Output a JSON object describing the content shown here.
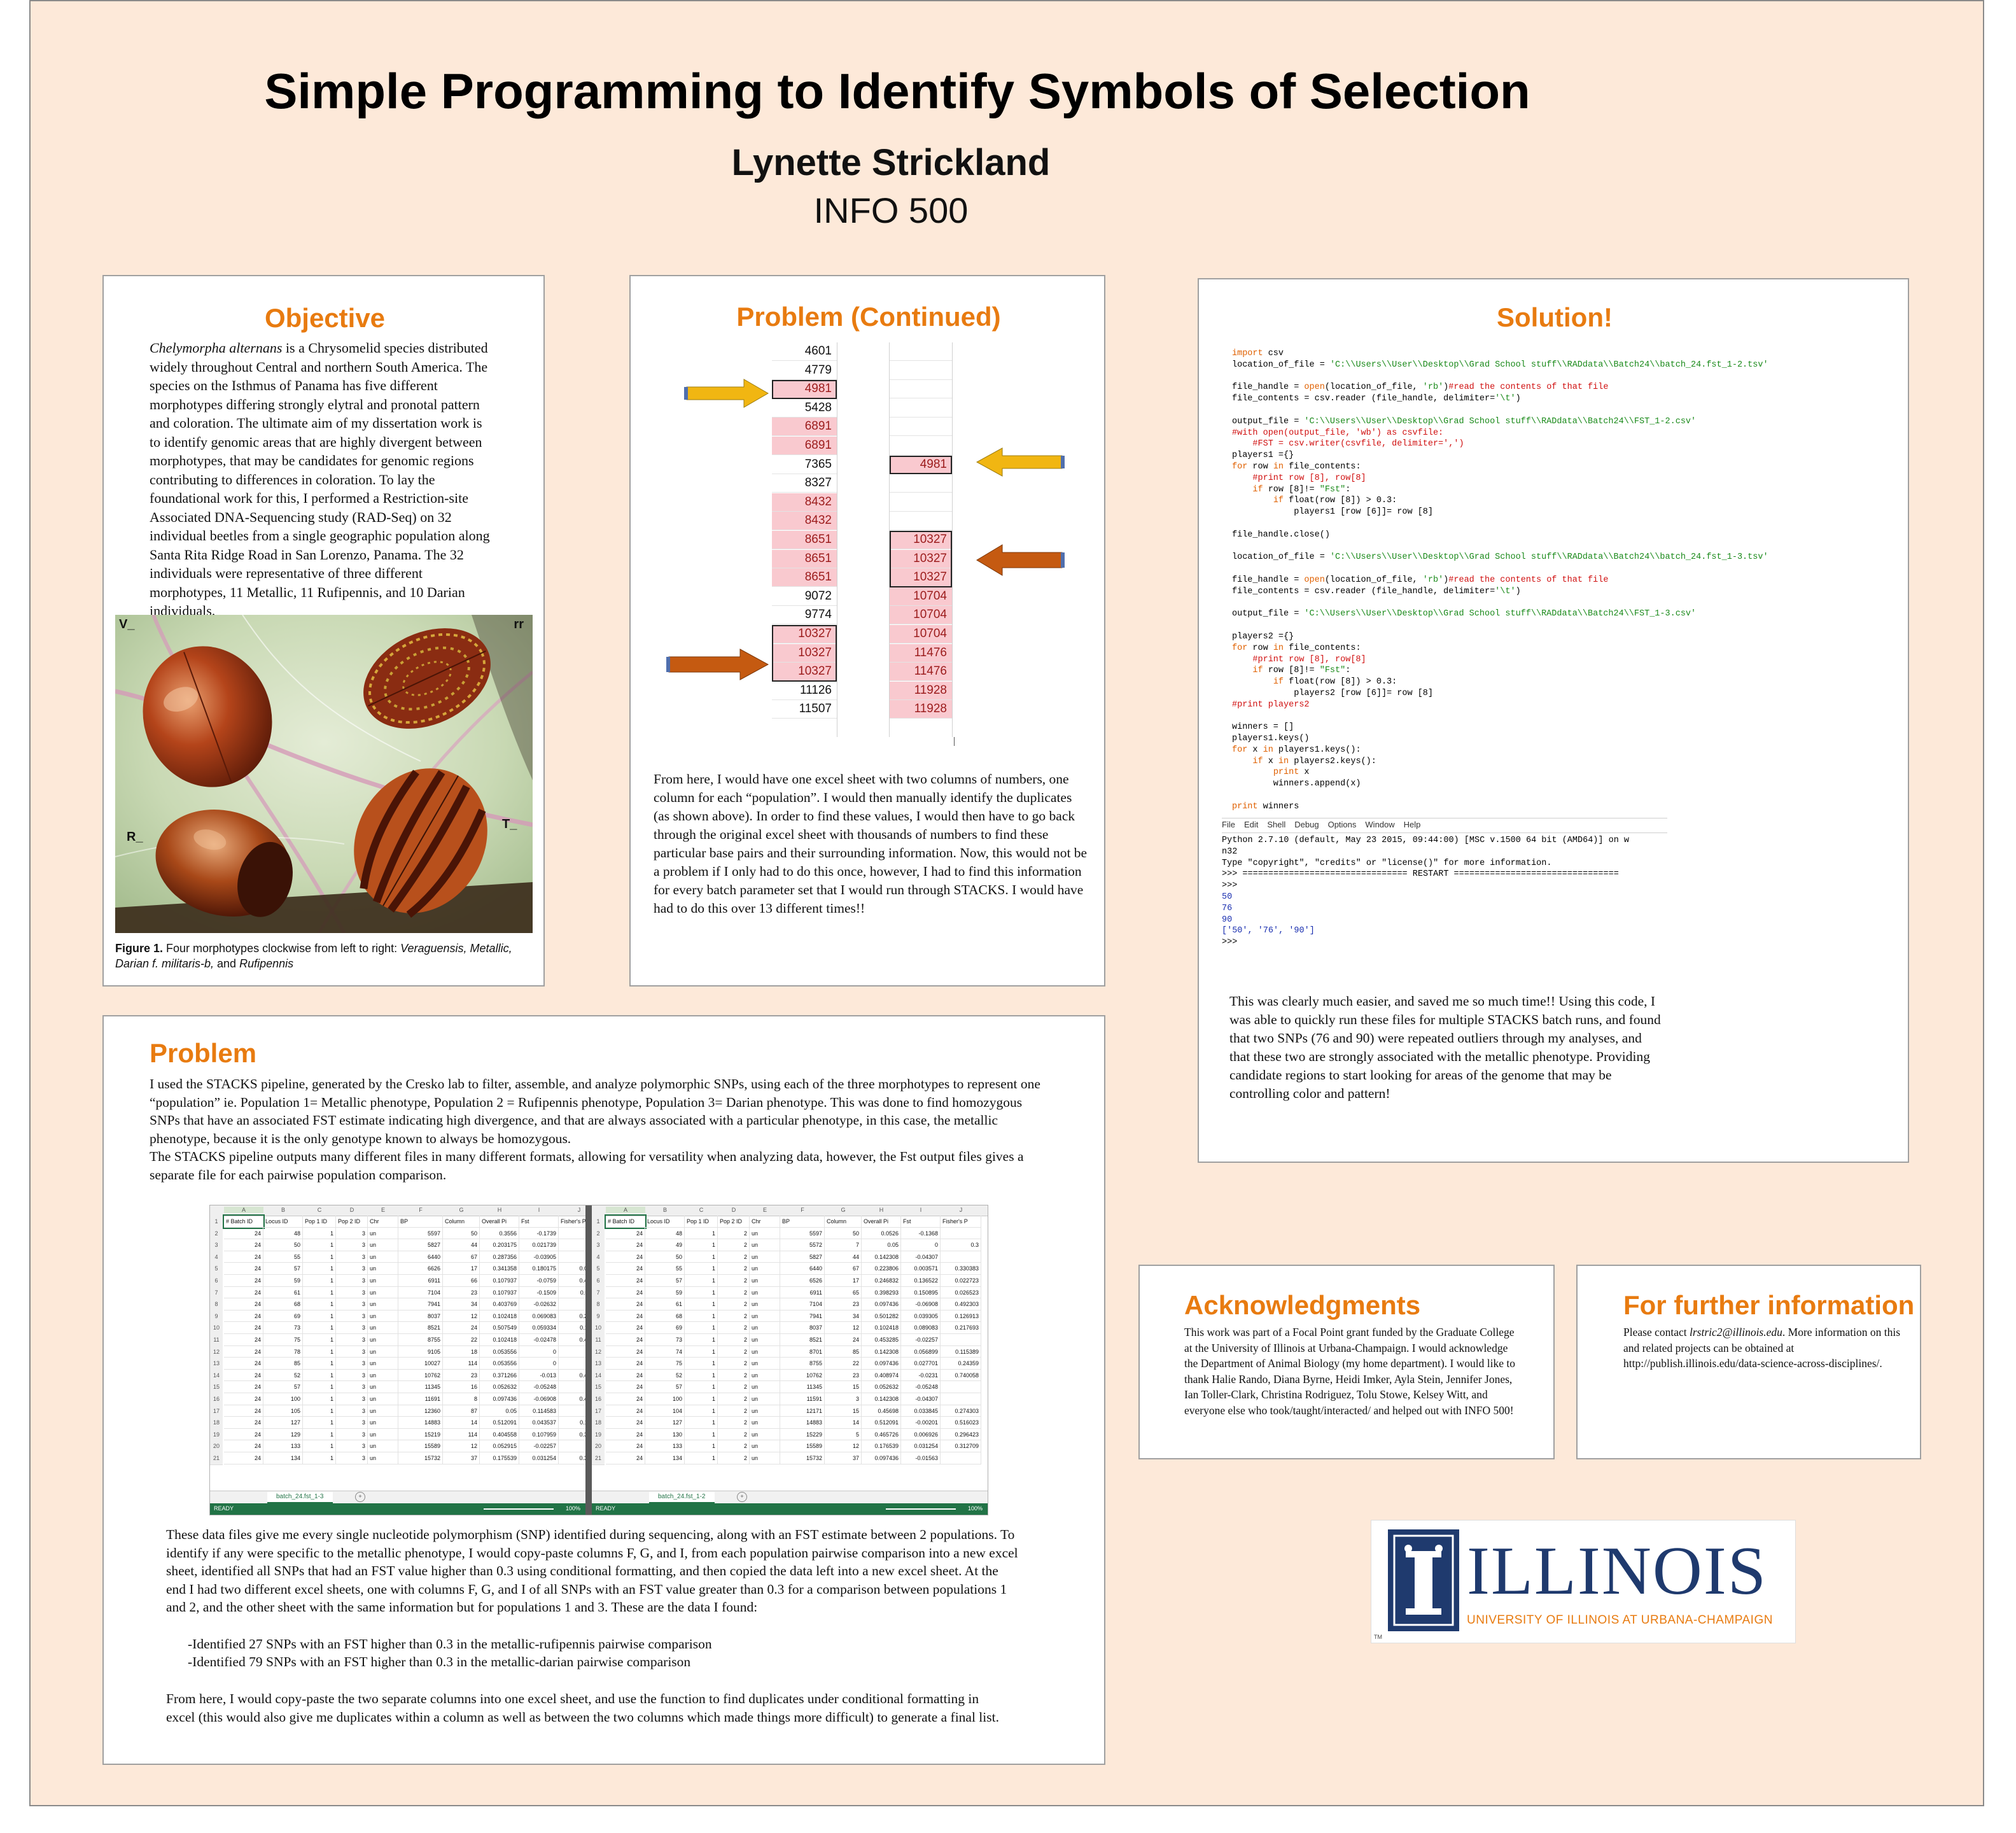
{
  "header": {
    "title": "Simple Programming to Identify Symbols of Selection",
    "author": "Lynette Strickland",
    "course": "INFO 500"
  },
  "objective": {
    "heading": "Objective",
    "species": "Chelymorpha alternans",
    "text": " is a Chrysomelid species distributed widely throughout Central and northern South America. The species on the Isthmus of Panama has five different morphotypes differing strongly elytral and pronotal pattern and coloration. The ultimate aim of my dissertation work is to identify genomic areas that are highly divergent between morphotypes, that may be candidates for genomic regions contributing to differences in coloration. To lay the foundational work for this, I performed a Restriction-site Associated DNA-Sequencing study (RAD-Seq) on 32 individual beetles from a single geographic population along Santa Rita Ridge Road in San Lorenzo, Panama. The 32 individuals were representative of three different morphotypes, 11 Metallic, 11 Rufipennis, and 10 Darian individuals.",
    "photo_labels": {
      "tl": "V_",
      "tr": "rr",
      "bl": "R_",
      "br": "T_"
    },
    "caption_bold": "Figure 1.",
    "caption_plain": " Four morphotypes clockwise from left to right: ",
    "caption_italic": "Veraguensis, Metallic, Darian f. militaris-b,",
    "caption_and": " and ",
    "caption_italic2": "Rufipennis"
  },
  "problem_continued": {
    "heading": "Problem (Continued)",
    "col_a": [
      "4601",
      "4779",
      "4981",
      "5428",
      "6891",
      "6891",
      "7365",
      "8327",
      "8432",
      "8432",
      "8651",
      "8651",
      "8651",
      "9072",
      "9774",
      "10327",
      "10327",
      "10327",
      "11126",
      "11507"
    ],
    "col_a_highlight": [
      false,
      false,
      true,
      false,
      true,
      true,
      false,
      false,
      true,
      true,
      true,
      true,
      true,
      false,
      false,
      true,
      true,
      true,
      false,
      false
    ],
    "col_b": [
      "",
      "",
      "",
      "",
      "",
      "",
      "4981",
      "",
      "",
      "",
      "10327",
      "10327",
      "10327",
      "10704",
      "10704",
      "10704",
      "11476",
      "11476",
      "11928",
      "11928"
    ],
    "col_b_highlight": [
      false,
      false,
      false,
      false,
      false,
      false,
      true,
      false,
      false,
      false,
      true,
      true,
      true,
      true,
      true,
      true,
      true,
      true,
      true,
      true
    ],
    "text": "From here, I would have one excel sheet with two columns of numbers, one column for each “population”. I would then manually identify the duplicates (as shown above). In order to find these values, I would then have to go back through the original excel sheet with thousands of numbers to find these particular base pairs and their surrounding information. Now, this would not be a problem if I only had to do this once, however, I had to find this information for every batch parameter set that I would run through STACKS. I would have had to do this over 13 different times!!"
  },
  "solution": {
    "heading": "Solution!",
    "menu": [
      "File",
      "Edit",
      "Shell",
      "Debug",
      "Options",
      "Window",
      "Help"
    ],
    "shell_lines": [
      "Python 2.7.10 (default, May 23 2015, 09:44:00) [MSC v.1500 64 bit (AMD64)] on w",
      "n32",
      "Type \"copyright\", \"credits\" or \"license()\" for more information.",
      ">>> ================================ RESTART ================================",
      ">>>",
      "50",
      "76",
      "90",
      "['50', '76', '90']",
      ">>>"
    ],
    "text": "This was clearly much easier, and saved me so much time!! Using this code, I was able to quickly run these files for multiple STACKS batch runs, and found that two SNPs (76 and 90) were repeated outliers through my analyses, and that these two are strongly associated with the metallic phenotype. Providing candidate regions to start looking for areas of the genome that may be controlling color and pattern!"
  },
  "problem": {
    "heading": "Problem",
    "para1": "I used the STACKS pipeline, generated by the Cresko lab to filter, assemble, and analyze polymorphic SNPs, using each of the three morphotypes to represent one “population” ie. Population 1= Metallic phenotype, Population 2 = Rufipennis phenotype, Population 3= Darian phenotype. This was done to find homozygous SNPs that have an associated FST estimate indicating high divergence, and that are always associated with a particular phenotype, in this case, the metallic phenotype, because it is the only genotype known to always be homozygous.",
    "para2": "The STACKS pipeline outputs many different files in many different formats, allowing for versatility when analyzing data, however, the Fst output files gives a separate file for each pairwise population comparison.",
    "sheet_left_tab": "batch_24.fst_1-3",
    "sheet_right_tab": "batch_24.fst_1-2",
    "sheet_status": "READY",
    "sheet_zoom": "100%",
    "col_letters": [
      "A",
      "B",
      "C",
      "D",
      "E",
      "F",
      "G",
      "H",
      "I",
      "J"
    ],
    "sheet_headers": [
      "# Batch ID",
      "Locus ID",
      "Pop 1 ID",
      "Pop 2 ID",
      "Chr",
      "BP",
      "Column",
      "Overall Pi",
      "Fst",
      "Fisher's P"
    ],
    "sheet_left_rows": [
      [
        "24",
        "48",
        "1",
        "3",
        "un",
        "5597",
        "50",
        "0.3556",
        "-0.1739",
        ""
      ],
      [
        "24",
        "50",
        "1",
        "3",
        "un",
        "5827",
        "44",
        "0.203175",
        "0.021739",
        ""
      ],
      [
        "24",
        "55",
        "1",
        "3",
        "un",
        "6440",
        "67",
        "0.287356",
        "-0.03905",
        ""
      ],
      [
        "24",
        "57",
        "1",
        "3",
        "un",
        "6626",
        "17",
        "0.341358",
        "0.180175",
        "0.0034"
      ],
      [
        "24",
        "59",
        "1",
        "3",
        "un",
        "6911",
        "66",
        "0.107937",
        "-0.0759",
        "0.4920"
      ],
      [
        "24",
        "61",
        "1",
        "3",
        "un",
        "7104",
        "23",
        "0.107937",
        "-0.1509",
        "0.5111"
      ],
      [
        "24",
        "68",
        "1",
        "3",
        "un",
        "7941",
        "34",
        "0.403769",
        "-0.02632",
        ""
      ],
      [
        "24",
        "69",
        "1",
        "3",
        "un",
        "8037",
        "12",
        "0.102418",
        "0.069083",
        "0.2176"
      ],
      [
        "24",
        "73",
        "1",
        "3",
        "un",
        "8521",
        "24",
        "0.507549",
        "0.059334",
        "0.1198"
      ],
      [
        "24",
        "75",
        "1",
        "3",
        "un",
        "8755",
        "22",
        "0.102418",
        "-0.02478",
        "0.4879"
      ],
      [
        "24",
        "78",
        "1",
        "3",
        "un",
        "9105",
        "18",
        "0.053556",
        "0",
        "0"
      ],
      [
        "24",
        "85",
        "1",
        "3",
        "un",
        "10027",
        "114",
        "0.053556",
        "0",
        "0"
      ],
      [
        "24",
        "52",
        "1",
        "3",
        "un",
        "10762",
        "23",
        "0.371266",
        "-0.013",
        "0.4543"
      ],
      [
        "24",
        "57",
        "1",
        "3",
        "un",
        "11345",
        "16",
        "0.052632",
        "-0.05248",
        ""
      ],
      [
        "24",
        "100",
        "1",
        "3",
        "un",
        "11691",
        "8",
        "0.097436",
        "-0.06908",
        "0.4923"
      ],
      [
        "24",
        "105",
        "1",
        "3",
        "un",
        "12360",
        "87",
        "0.05",
        "0.114583",
        "3J"
      ],
      [
        "24",
        "127",
        "1",
        "3",
        "un",
        "14883",
        "14",
        "0.512091",
        "0.043537",
        "0.1192"
      ],
      [
        "24",
        "129",
        "1",
        "3",
        "un",
        "15219",
        "114",
        "0.404558",
        "0.107959",
        "0.3394"
      ],
      [
        "24",
        "133",
        "1",
        "3",
        "un",
        "15589",
        "12",
        "0.052915",
        "-0.02257",
        ""
      ],
      [
        "24",
        "134",
        "1",
        "3",
        "un",
        "15732",
        "37",
        "0.175539",
        "0.031254",
        "0.3127"
      ]
    ],
    "sheet_right_rows": [
      [
        "24",
        "48",
        "1",
        "2",
        "un",
        "5597",
        "50",
        "0.0526",
        "-0.1368",
        ""
      ],
      [
        "24",
        "49",
        "1",
        "2",
        "un",
        "5572",
        "7",
        "0.05",
        "0",
        "0.3"
      ],
      [
        "24",
        "50",
        "1",
        "2",
        "un",
        "5827",
        "44",
        "0.142308",
        "-0.04307",
        ""
      ],
      [
        "24",
        "55",
        "1",
        "2",
        "un",
        "6440",
        "67",
        "0.223806",
        "0.003571",
        "0.330383"
      ],
      [
        "24",
        "57",
        "1",
        "2",
        "un",
        "6526",
        "17",
        "0.246832",
        "0.136522",
        "0.022723"
      ],
      [
        "24",
        "59",
        "1",
        "2",
        "un",
        "6911",
        "65",
        "0.398293",
        "0.150895",
        "0.026523"
      ],
      [
        "24",
        "61",
        "1",
        "2",
        "un",
        "7104",
        "23",
        "0.097436",
        "-0.06908",
        "0.492303"
      ],
      [
        "24",
        "68",
        "1",
        "2",
        "un",
        "7941",
        "34",
        "0.501282",
        "0.039305",
        "0.126913"
      ],
      [
        "24",
        "69",
        "1",
        "2",
        "un",
        "8037",
        "12",
        "0.102418",
        "0.089083",
        "0.217693"
      ],
      [
        "24",
        "73",
        "1",
        "2",
        "un",
        "8521",
        "24",
        "0.453285",
        "-0.02257",
        ""
      ],
      [
        "24",
        "74",
        "1",
        "2",
        "un",
        "8701",
        "85",
        "0.142308",
        "0.056899",
        "0.115389"
      ],
      [
        "24",
        "75",
        "1",
        "2",
        "un",
        "8755",
        "22",
        "0.097436",
        "0.027701",
        "0.24359"
      ],
      [
        "24",
        "52",
        "1",
        "2",
        "un",
        "10762",
        "23",
        "0.408974",
        "-0.0231",
        "0.740058"
      ],
      [
        "24",
        "57",
        "1",
        "2",
        "un",
        "11345",
        "15",
        "0.052632",
        "-0.05248",
        ""
      ],
      [
        "24",
        "100",
        "1",
        "2",
        "un",
        "11591",
        "3",
        "0.142308",
        "-0.04307",
        ""
      ],
      [
        "24",
        "104",
        "1",
        "2",
        "un",
        "12171",
        "15",
        "0.45698",
        "0.033845",
        "0.274303"
      ],
      [
        "24",
        "127",
        "1",
        "2",
        "un",
        "14883",
        "14",
        "0.512091",
        "-0.00201",
        "0.516023"
      ],
      [
        "24",
        "130",
        "1",
        "2",
        "un",
        "15229",
        "5",
        "0.465726",
        "0.006926",
        "0.296423"
      ],
      [
        "24",
        "133",
        "1",
        "2",
        "un",
        "15589",
        "12",
        "0.176539",
        "0.031254",
        "0.312709"
      ],
      [
        "24",
        "134",
        "1",
        "2",
        "un",
        "15732",
        "37",
        "0.097436",
        "-0.01563",
        ""
      ]
    ],
    "para3": "These data files give me every single nucleotide polymorphism (SNP) identified during sequencing, along with an FST estimate between 2 populations. To identify if any were specific to the metallic phenotype, I would copy-paste columns F, G, and I, from each population pairwise comparison into a new excel sheet, identified all SNPs that had an FST value higher than 0.3 using conditional formatting, and then copied the data left into a new excel sheet. At the end I had two different excel sheets, one with columns F, G, and I of all SNPs with an FST value greater than 0.3 for a comparison between populations 1 and 2, and the other sheet with the same information but for populations 1 and 3. These are the data I found:",
    "bullet1": "-Identified 27 SNPs with an FST higher than 0.3 in the metallic-rufipennis pairwise comparison",
    "bullet2": "-Identified 79 SNPs with an FST higher than 0.3 in the metallic-darian pairwise comparison",
    "para4": "From here, I would copy-paste the two separate columns into one excel sheet, and use the function to find duplicates under conditional formatting in excel (this would also give me duplicates within a column as well as between the two columns which made things more difficult) to generate a final list."
  },
  "acknowledgments": {
    "heading": "Acknowledgments",
    "text": "This work was part of a Focal Point grant funded by the Graduate College at the University of Illinois at Urbana-Champaign. I would acknowledge the Department of Animal Biology (my home department). I would like to thank Halie Rando, Diana Byrne, Heidi Imker, Ayla Stein, Jennifer Jones, Ian Toller-Clark, Christina Rodriguez, Tolu Stowe, Kelsey Witt, and everyone else who took/taught/interacted/ and helped out with INFO 500!"
  },
  "further_info": {
    "heading": "For further information",
    "text_before": "Please contact ",
    "email": "lrstric2@illinois.edu",
    "text_after": ".  More information on this and related projects can be obtained at http://publish.illinois.edu/data-science-across-disciplines/."
  },
  "logo": {
    "word": "ILLINOIS",
    "subtitle": "UNIVERSITY OF ILLINOIS AT URBANA-CHAMPAIGN",
    "tm": "TM"
  },
  "colors": {
    "poster_bg": "#fde9d9",
    "heading": "#e87b10",
    "highlight": "#f9c9cf",
    "illinois_blue": "#1f3a6e",
    "arrow_gold": "#f1b612",
    "arrow_orange": "#c55a11"
  }
}
